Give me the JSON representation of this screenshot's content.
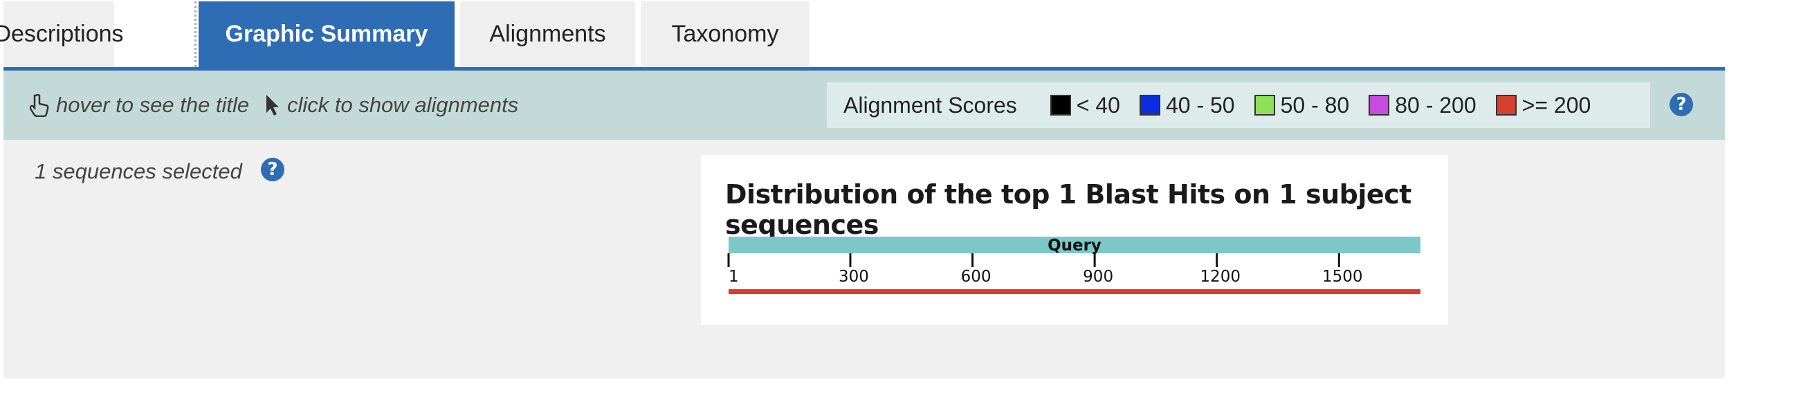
{
  "tabs": [
    {
      "label": "Descriptions",
      "active": false
    },
    {
      "label": "Graphic Summary",
      "active": true
    },
    {
      "label": "Alignments",
      "active": false
    },
    {
      "label": "Taxonomy",
      "active": false
    }
  ],
  "toolbar": {
    "hover_hint": "hover to see the title",
    "click_hint": "click to show alignments",
    "legend": {
      "title": "Alignment Scores",
      "items": [
        {
          "label": "< 40",
          "color": "#000000"
        },
        {
          "label": "40 - 50",
          "color": "#0b2ce0"
        },
        {
          "label": "50 - 80",
          "color": "#8ee059"
        },
        {
          "label": "80 - 200",
          "color": "#c64bde"
        },
        {
          "label": ">= 200",
          "color": "#d6402e"
        }
      ]
    },
    "help_label": "?"
  },
  "main": {
    "selected_text": "1 sequences selected",
    "help_label": "?"
  },
  "chart_data": {
    "type": "bar",
    "title": "Distribution of the top 1 Blast Hits on 1 subject sequences",
    "query_label": "Query",
    "query_color": "#7cc8c8",
    "axis": {
      "min": 1,
      "max": 1700,
      "ticks": [
        1,
        300,
        600,
        900,
        1200,
        1500
      ]
    },
    "hits": [
      {
        "start": 1,
        "end": 1700,
        "score_bin": ">= 200",
        "color": "#e03a2e"
      }
    ]
  }
}
